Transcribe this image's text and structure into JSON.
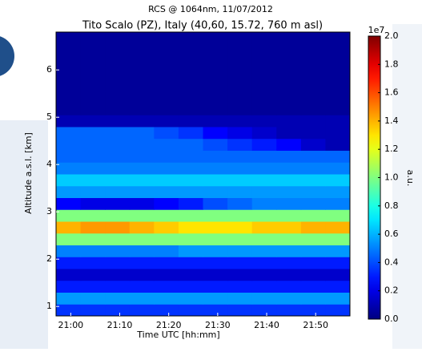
{
  "chart_data": {
    "type": "heatmap",
    "subtitle": "RCS @ 1064nm, 11/07/2012",
    "title": "Tito Scalo (PZ), Italy (40,60, 15.72, 760 m asl)",
    "xlabel": "Time UTC [hh:mm]",
    "ylabel": "Altitude a.s.l. [km]",
    "colorbar_label": "a.u.",
    "colorbar_exponent": "1e7",
    "colormap": "jet",
    "xlim": [
      1257,
      1317
    ],
    "ylim": [
      0.8,
      6.8
    ],
    "zlim": [
      0,
      2
    ],
    "xticks": [
      {
        "value": 1260,
        "label": "21:00"
      },
      {
        "value": 1270,
        "label": "21:10"
      },
      {
        "value": 1280,
        "label": "21:20"
      },
      {
        "value": 1290,
        "label": "21:30"
      },
      {
        "value": 1300,
        "label": "21:40"
      },
      {
        "value": 1310,
        "label": "21:50"
      }
    ],
    "yticks": [
      1,
      2,
      3,
      4,
      5,
      6
    ],
    "zticks": [
      {
        "value": 0,
        "label": "0.0"
      },
      0.2,
      0.4,
      0.6,
      0.8,
      {
        "value": 1,
        "label": "1.0"
      },
      1.2,
      1.4,
      1.6,
      1.8,
      {
        "value": 2,
        "label": "2.0"
      }
    ],
    "x": [
      1259.5,
      1264.5,
      1269.5,
      1274.5,
      1279.5,
      1284.5,
      1289.5,
      1294.5,
      1299.5,
      1304.5,
      1309.5,
      1314.5
    ],
    "y": [
      0.925,
      1.175,
      1.425,
      1.675,
      1.925,
      2.175,
      2.425,
      2.675,
      2.925,
      3.175,
      3.425,
      3.675,
      3.925,
      4.175,
      4.425,
      4.675,
      4.925,
      5.175,
      5.425,
      5.675,
      5.925,
      6.175,
      6.425,
      6.675
    ],
    "z": [
      [
        0.35,
        0.35,
        0.35,
        0.35,
        0.35,
        0.35,
        0.35,
        0.35,
        0.35,
        0.35,
        0.35,
        0.35
      ],
      [
        0.55,
        0.55,
        0.55,
        0.55,
        0.55,
        0.55,
        0.55,
        0.55,
        0.55,
        0.55,
        0.55,
        0.55
      ],
      [
        0.3,
        0.3,
        0.3,
        0.3,
        0.3,
        0.3,
        0.3,
        0.3,
        0.3,
        0.3,
        0.3,
        0.3
      ],
      [
        0.15,
        0.15,
        0.15,
        0.15,
        0.15,
        0.15,
        0.15,
        0.15,
        0.15,
        0.15,
        0.15,
        0.15
      ],
      [
        0.3,
        0.3,
        0.3,
        0.3,
        0.3,
        0.3,
        0.3,
        0.3,
        0.3,
        0.3,
        0.3,
        0.3
      ],
      [
        0.5,
        0.5,
        0.5,
        0.5,
        0.5,
        0.55,
        0.55,
        0.55,
        0.55,
        0.55,
        0.55,
        0.55
      ],
      [
        1.0,
        1.0,
        1.0,
        1.0,
        1.0,
        1.0,
        1.0,
        1.0,
        1.0,
        1.0,
        1.0,
        1.0
      ],
      [
        1.4,
        1.45,
        1.45,
        1.4,
        1.35,
        1.3,
        1.3,
        1.3,
        1.35,
        1.35,
        1.4,
        1.4
      ],
      [
        1.0,
        1.0,
        1.0,
        1.0,
        1.0,
        1.0,
        1.0,
        1.0,
        1.0,
        1.0,
        1.0,
        1.0
      ],
      [
        0.25,
        0.2,
        0.2,
        0.2,
        0.25,
        0.3,
        0.4,
        0.45,
        0.5,
        0.5,
        0.5,
        0.5
      ],
      [
        0.55,
        0.55,
        0.55,
        0.55,
        0.55,
        0.55,
        0.55,
        0.55,
        0.55,
        0.55,
        0.55,
        0.55
      ],
      [
        0.65,
        0.65,
        0.65,
        0.65,
        0.65,
        0.65,
        0.65,
        0.65,
        0.65,
        0.65,
        0.65,
        0.65
      ],
      [
        0.5,
        0.5,
        0.5,
        0.5,
        0.5,
        0.5,
        0.5,
        0.5,
        0.5,
        0.5,
        0.5,
        0.5
      ],
      [
        0.45,
        0.45,
        0.45,
        0.45,
        0.45,
        0.45,
        0.45,
        0.45,
        0.45,
        0.45,
        0.45,
        0.45
      ],
      [
        0.45,
        0.45,
        0.45,
        0.45,
        0.45,
        0.45,
        0.4,
        0.35,
        0.3,
        0.25,
        0.15,
        0.1
      ],
      [
        0.45,
        0.45,
        0.45,
        0.45,
        0.4,
        0.35,
        0.25,
        0.2,
        0.15,
        0.1,
        0.1,
        0.1
      ],
      [
        0.1,
        0.1,
        0.1,
        0.1,
        0.1,
        0.1,
        0.1,
        0.1,
        0.1,
        0.1,
        0.1,
        0.1
      ],
      [
        0.05,
        0.05,
        0.05,
        0.05,
        0.05,
        0.05,
        0.05,
        0.05,
        0.05,
        0.05,
        0.05,
        0.05
      ],
      [
        0.05,
        0.05,
        0.05,
        0.05,
        0.05,
        0.05,
        0.05,
        0.05,
        0.05,
        0.05,
        0.05,
        0.05
      ],
      [
        0.05,
        0.05,
        0.05,
        0.05,
        0.05,
        0.05,
        0.05,
        0.05,
        0.05,
        0.05,
        0.05,
        0.05
      ],
      [
        0.05,
        0.05,
        0.05,
        0.05,
        0.05,
        0.05,
        0.05,
        0.05,
        0.05,
        0.05,
        0.05,
        0.05
      ],
      [
        0.05,
        0.05,
        0.05,
        0.05,
        0.05,
        0.05,
        0.05,
        0.05,
        0.05,
        0.05,
        0.05,
        0.05
      ],
      [
        0.05,
        0.05,
        0.05,
        0.05,
        0.05,
        0.05,
        0.05,
        0.05,
        0.05,
        0.05,
        0.05,
        0.05
      ],
      [
        0.05,
        0.05,
        0.05,
        0.05,
        0.05,
        0.05,
        0.05,
        0.05,
        0.05,
        0.05,
        0.05,
        0.05
      ]
    ]
  }
}
